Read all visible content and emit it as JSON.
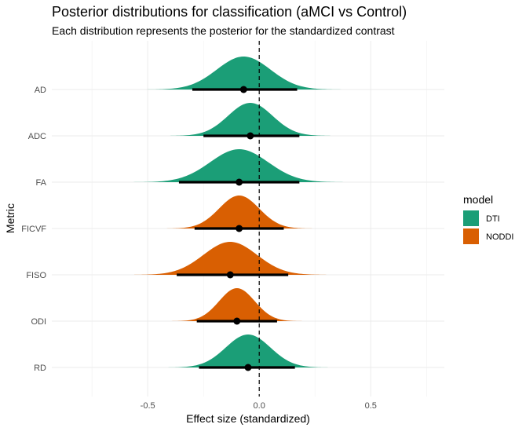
{
  "chart_data": {
    "type": "density_ridges",
    "title": "Posterior distributions for classification (aMCI vs Control)",
    "subtitle": "Each distribution represents the posterior for the standardized contrast",
    "xlabel": "Effect size (standardized)",
    "ylabel": "Metric",
    "xlim": [
      -0.93,
      0.83
    ],
    "x_ticks": [
      -0.5,
      0.0,
      0.5
    ],
    "x_tick_labels": [
      "-0.5",
      "0.0",
      "0.5"
    ],
    "reference_line": {
      "x": 0,
      "style": "dashed"
    },
    "grid": true,
    "legend": {
      "title": "model",
      "placement": "right",
      "items": [
        {
          "label": "DTI",
          "color": "#1b9e77"
        },
        {
          "label": "NODDI",
          "color": "#d95f02"
        }
      ]
    },
    "categories": [
      "AD",
      "ADC",
      "FA",
      "FICVF",
      "FISO",
      "ODI",
      "RD"
    ],
    "series": [
      {
        "metric": "AD",
        "model": "DTI",
        "median": -0.07,
        "ci_low": -0.3,
        "ci_high": 0.17,
        "sd": 0.12,
        "density_range": [
          -0.52,
          0.39
        ]
      },
      {
        "metric": "ADC",
        "model": "DTI",
        "median": -0.04,
        "ci_low": -0.25,
        "ci_high": 0.18,
        "sd": 0.1,
        "density_range": [
          -0.42,
          0.34
        ]
      },
      {
        "metric": "FA",
        "model": "DTI",
        "median": -0.09,
        "ci_low": -0.36,
        "ci_high": 0.18,
        "sd": 0.13,
        "density_range": [
          -0.63,
          0.47
        ]
      },
      {
        "metric": "FICVF",
        "model": "NODDI",
        "median": -0.09,
        "ci_low": -0.29,
        "ci_high": 0.11,
        "sd": 0.09,
        "density_range": [
          -0.48,
          0.29
        ]
      },
      {
        "metric": "FISO",
        "model": "NODDI",
        "median": -0.13,
        "ci_low": -0.37,
        "ci_high": 0.13,
        "sd": 0.12,
        "density_range": [
          -0.56,
          0.34
        ]
      },
      {
        "metric": "ODI",
        "model": "NODDI",
        "median": -0.1,
        "ci_low": -0.28,
        "ci_high": 0.08,
        "sd": 0.08,
        "density_range": [
          -0.51,
          0.31
        ]
      },
      {
        "metric": "RD",
        "model": "DTI",
        "median": -0.05,
        "ci_low": -0.27,
        "ci_high": 0.16,
        "sd": 0.1,
        "density_range": [
          -0.5,
          0.4
        ]
      }
    ]
  }
}
